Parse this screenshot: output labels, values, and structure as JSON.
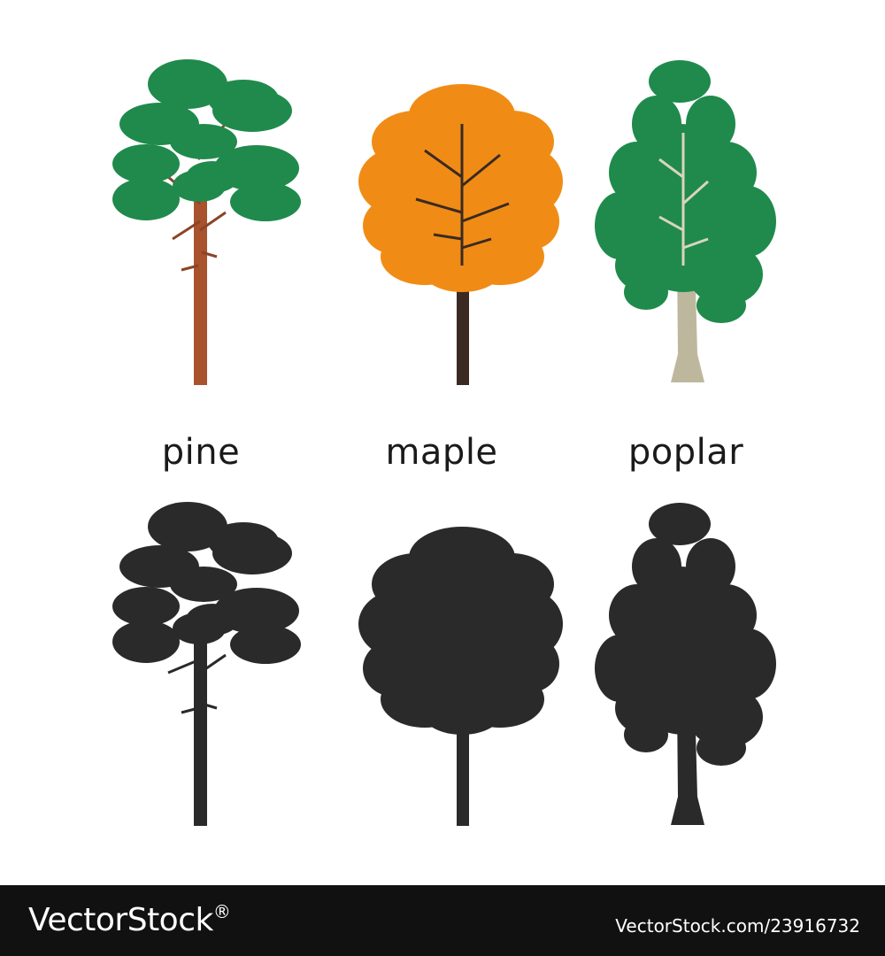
{
  "trees": [
    {
      "label": "pine",
      "foliage_color": "#1f8a4c",
      "trunk_color": "#a8522e"
    },
    {
      "label": "maple",
      "foliage_color": "#f08c15",
      "trunk_color": "#3b2a22"
    },
    {
      "label": "poplar",
      "foliage_color": "#1f8a4c",
      "trunk_color": "#bdb89d"
    }
  ],
  "silhouette_color": "#2a2a2a",
  "footer": {
    "brand_main": "VectorStock",
    "brand_mark": "®",
    "credit": "VectorStock.com/23916732"
  }
}
